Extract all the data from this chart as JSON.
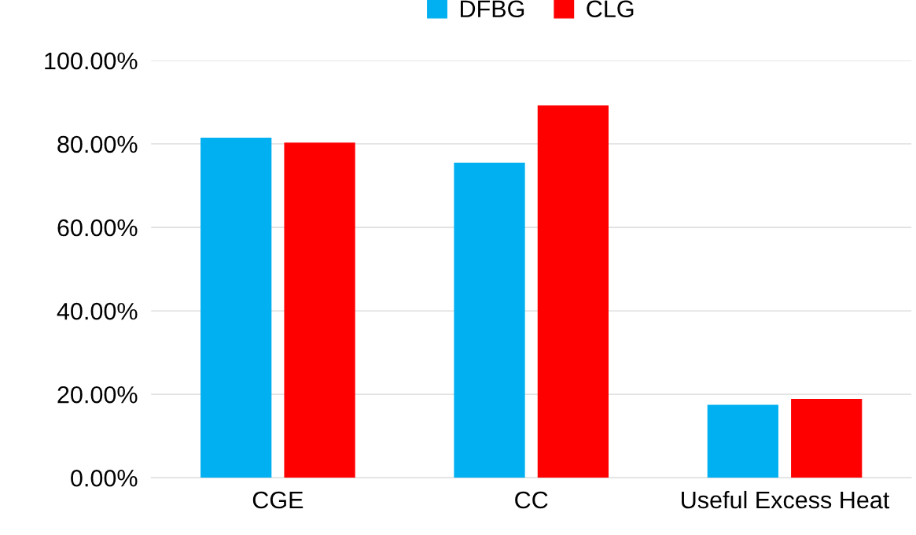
{
  "chart_data": {
    "type": "bar",
    "categories": [
      "CGE",
      "CC",
      "Useful Excess Heat"
    ],
    "series": [
      {
        "name": "DFBG",
        "color": "#00b0f0",
        "values": [
          81.5,
          75.5,
          17.5
        ]
      },
      {
        "name": "CLG",
        "color": "#ff0000",
        "values": [
          80.3,
          89.2,
          18.9
        ]
      }
    ],
    "ylim": [
      0,
      100
    ],
    "yticks": [
      {
        "value": 0,
        "label": "0.00%"
      },
      {
        "value": 20,
        "label": "20.00%"
      },
      {
        "value": 40,
        "label": "40.00%"
      },
      {
        "value": 60,
        "label": "60.00%"
      },
      {
        "value": 80,
        "label": "80.00%"
      },
      {
        "value": 100,
        "label": "100.00%"
      }
    ],
    "grid": "y",
    "legend": "top"
  }
}
